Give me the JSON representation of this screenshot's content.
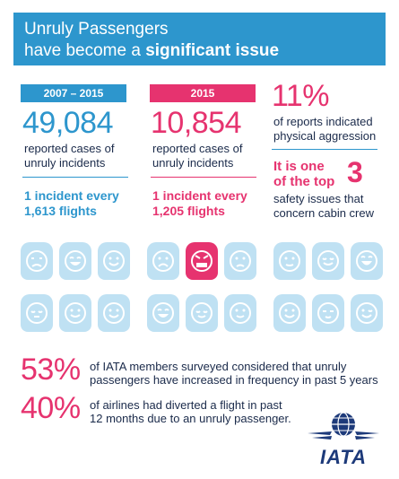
{
  "header": {
    "line1": "Unruly Passengers",
    "line2_prefix": "have become a ",
    "line2_bold": "significant issue"
  },
  "col1": {
    "tag": "2007 – 2015",
    "count": "49,084",
    "desc_line1": "reported cases of",
    "desc_line2": "unruly incidents",
    "rate_line1": "1 incident every",
    "rate_line2": "1,613 flights"
  },
  "col2": {
    "tag": "2015",
    "count": "10,854",
    "desc_line1": "reported cases of",
    "desc_line2": "unruly incidents",
    "rate_line1": "1 incident every",
    "rate_line2": "1,205 flights"
  },
  "col3": {
    "pct": "11%",
    "pct_line1": "of reports indicated",
    "pct_line2": "physical aggression",
    "top_line1": "It is one",
    "top_line2": "of the top",
    "top_number": "3",
    "top_desc1": "safety issues that",
    "top_desc2": "concern cabin crew"
  },
  "stats": [
    {
      "pct": "53%",
      "line1": "of IATA members surveyed considered that unruly",
      "line2": "passengers have increased in frequency in past 5 years"
    },
    {
      "pct": "40%",
      "line1": "of airlines had diverted a flight in past",
      "line2": "12 months due to an unruly passenger."
    }
  ],
  "logo": {
    "text": "IATA"
  },
  "colors": {
    "blue": "#2d96cd",
    "pink": "#e6336f",
    "seat": "#bfe1f3",
    "navy": "#1a2a4a"
  }
}
